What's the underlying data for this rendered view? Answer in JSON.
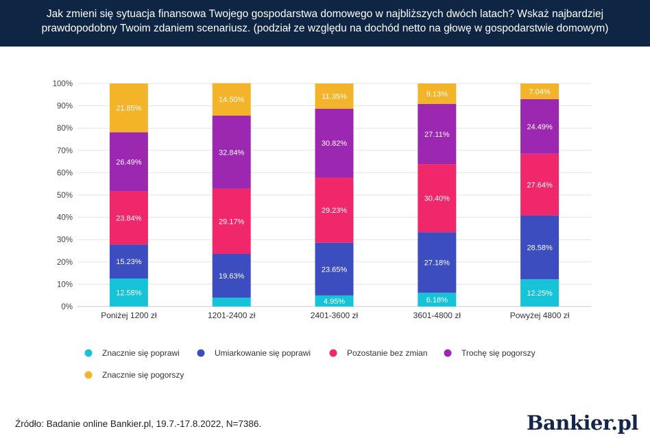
{
  "header": {
    "title": "Jak zmieni się sytuacja finansowa Twojego gospodarstwa domowego w najbliższych dwóch latach? Wskaż najbardziej prawdopodobny Twoim zdaniem scenariusz. (podział ze względu na dochód netto na głowę w gospodarstwie domowym)"
  },
  "chart_data": {
    "type": "bar",
    "stacked": true,
    "categories": [
      "Poniżej 1200 zł",
      "1201-2400 zł",
      "2401-3600 zł",
      "3601-4800 zł",
      "Powyżej 4800 zł"
    ],
    "series": [
      {
        "name": "Znacznie się poprawi",
        "color": "#17c3d8",
        "values": [
          12.58,
          4.0,
          4.95,
          6.18,
          12.25
        ],
        "labels": [
          "12.58%",
          "",
          "4.95%",
          "6.18%",
          "12.25%"
        ]
      },
      {
        "name": "Umiarkowanie się poprawi",
        "color": "#3b4dbf",
        "values": [
          15.23,
          19.63,
          23.65,
          27.18,
          28.58
        ],
        "labels": [
          "15.23%",
          "19.63%",
          "23.65%",
          "27.18%",
          "28.58%"
        ]
      },
      {
        "name": "Pozostanie bez zmian",
        "color": "#f0276a",
        "values": [
          23.84,
          29.17,
          29.23,
          30.4,
          27.64
        ],
        "labels": [
          "23.84%",
          "29.17%",
          "29.23%",
          "30.40%",
          "27.64%"
        ]
      },
      {
        "name": "Trochę się pogorszy",
        "color": "#9c27b0",
        "values": [
          26.49,
          32.84,
          30.82,
          27.11,
          24.49
        ],
        "labels": [
          "26.49%",
          "32.84%",
          "30.82%",
          "27.11%",
          "24.49%"
        ]
      },
      {
        "name": "Znacznie się pogorszy",
        "color": "#f4b42a",
        "values": [
          21.85,
          14.5,
          11.35,
          9.13,
          7.04
        ],
        "labels": [
          "21.85%",
          "14.50%",
          "11.35%",
          "9.13%",
          "7.04%"
        ]
      }
    ],
    "ylim": [
      0,
      100
    ],
    "yticks": [
      "0%",
      "10%",
      "20%",
      "30%",
      "40%",
      "50%",
      "60%",
      "70%",
      "80%",
      "90%",
      "100%"
    ],
    "grid": true,
    "legend_position": "bottom"
  },
  "footer": {
    "source": "Źródło: Badanie online Bankier.pl, 19.7.-17.8.2022, N=7386.",
    "logo": "Bankier.pl"
  }
}
